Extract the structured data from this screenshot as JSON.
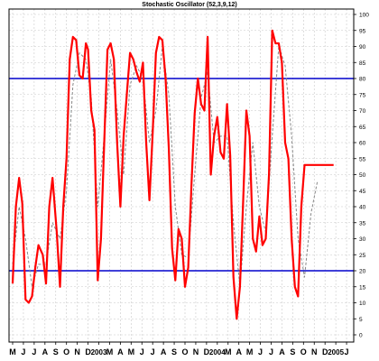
{
  "chart_data": {
    "type": "line",
    "title": "Stochastic Oscillator (52,3,9,12)",
    "xlabel": "",
    "ylabel": "",
    "ylim": [
      0,
      100
    ],
    "yticks": [
      0,
      5,
      10,
      15,
      20,
      25,
      30,
      35,
      40,
      45,
      50,
      55,
      60,
      65,
      70,
      75,
      80,
      85,
      90,
      95,
      100
    ],
    "month_labels": [
      "M",
      "J",
      "J",
      "A",
      "S",
      "O",
      "N",
      "D",
      "2003",
      "M",
      "A",
      "M",
      "J",
      "J",
      "A",
      "S",
      "O",
      "N",
      "D",
      "2004",
      "M",
      "A",
      "M",
      "J",
      "J",
      "A",
      "S",
      "O",
      "N",
      "D",
      "2005",
      "J"
    ],
    "reference_lines": [
      80,
      20
    ],
    "grid": true,
    "colors": {
      "main": "#ff0000",
      "signal": "#888888",
      "reference": "#0000cc",
      "grid": "#c8c8c8"
    },
    "series": [
      {
        "style": "solid",
        "x": [
          0,
          0.3,
          0.6,
          0.9,
          1.2,
          1.5,
          1.8,
          2.1,
          2.4,
          2.8,
          3.1,
          3.4,
          3.7,
          4.1,
          4.4,
          4.7,
          5.0,
          5.3,
          5.6,
          5.9,
          6.2,
          6.5,
          6.8,
          7.0,
          7.3,
          7.6,
          7.9,
          8.2,
          8.5,
          8.8,
          9.1,
          9.4,
          9.7,
          10.0,
          10.3,
          10.6,
          10.9,
          11.2,
          11.5,
          11.8,
          12.1,
          12.4,
          12.7,
          13.0,
          13.3,
          13.6,
          13.9,
          14.2,
          14.5,
          14.8,
          15.1,
          15.4,
          15.7,
          16.0,
          16.3,
          16.6,
          16.9,
          17.2,
          17.5,
          17.8,
          18.1,
          18.4,
          18.7,
          19.0,
          19.3,
          19.6,
          19.9,
          20.2,
          20.5,
          20.8,
          21.1,
          21.4,
          21.7,
          22.0,
          22.3,
          22.6,
          22.9,
          23.2,
          23.5,
          23.8,
          24.1,
          24.4,
          24.7,
          25.0,
          25.3,
          25.6,
          25.9,
          26.2,
          26.5,
          26.8,
          27.1,
          27.4,
          27.7,
          28.0,
          28.3,
          28.6,
          28.9,
          29.2,
          29.5,
          29.8
        ],
        "values": [
          16,
          40,
          49,
          41,
          11,
          10,
          12,
          21,
          28,
          25,
          16,
          40,
          49,
          32,
          15,
          40,
          55,
          86,
          93,
          92,
          81,
          80,
          91,
          89,
          70,
          64,
          17,
          30,
          60,
          89,
          91,
          86,
          60,
          40,
          62,
          75,
          88,
          86,
          82,
          79,
          85,
          60,
          42,
          63,
          88,
          93,
          92,
          80,
          58,
          27,
          17,
          33,
          30,
          15,
          21,
          47,
          69,
          80,
          72,
          70,
          93,
          50,
          62,
          68,
          57,
          55,
          72,
          56,
          18,
          5,
          15,
          42,
          70,
          62,
          30,
          26,
          37,
          28,
          30,
          50,
          95,
          91,
          91,
          85,
          60,
          55,
          30,
          15,
          12,
          40,
          53,
          53,
          53,
          53,
          53,
          53,
          53,
          53,
          53,
          53
        ]
      },
      {
        "style": "dashed",
        "x": [
          0,
          0.6,
          1.2,
          1.8,
          2.4,
          3.1,
          3.7,
          4.4,
          5.0,
          5.6,
          6.2,
          6.8,
          7.3,
          7.9,
          8.5,
          9.1,
          9.7,
          10.3,
          10.9,
          11.5,
          12.1,
          12.7,
          13.3,
          13.9,
          14.5,
          15.1,
          15.7,
          16.3,
          16.9,
          17.5,
          18.1,
          18.7,
          19.3,
          19.9,
          20.5,
          21.1,
          21.7,
          22.3,
          22.9,
          23.5,
          24.1,
          24.7,
          25.3,
          25.9,
          26.5,
          27.1,
          27.7,
          28.3
        ],
        "values": [
          22,
          40,
          30,
          15,
          22,
          22,
          35,
          30,
          45,
          78,
          88,
          86,
          74,
          40,
          62,
          86,
          70,
          50,
          78,
          84,
          80,
          60,
          70,
          90,
          75,
          40,
          25,
          24,
          50,
          74,
          82,
          60,
          62,
          62,
          35,
          15,
          40,
          60,
          40,
          32,
          62,
          90,
          84,
          62,
          30,
          18,
          38,
          48
        ]
      }
    ]
  }
}
